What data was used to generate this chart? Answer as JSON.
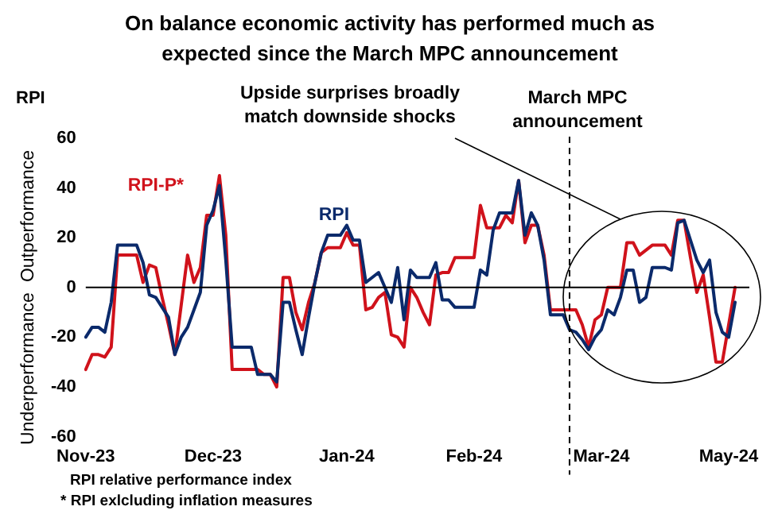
{
  "chart_data": {
    "type": "line",
    "title": "On balance economic activity has performed much as expected since the March MPC announcement",
    "ylabel": "RPI",
    "annotations": [
      "Outperformance",
      "Underperformance",
      "Upside surprises broadly match downside shocks",
      "March MPC announcement",
      "RPI relative performance index",
      "* RPI exlcluding inflation measures"
    ],
    "categories": [
      "Nov-23",
      null,
      null,
      null,
      null,
      null,
      null,
      null,
      null,
      null,
      null,
      null,
      null,
      null,
      null,
      null,
      null,
      null,
      null,
      null,
      "Dec-23",
      null,
      null,
      null,
      null,
      null,
      null,
      null,
      null,
      null,
      null,
      null,
      null,
      null,
      null,
      null,
      null,
      null,
      null,
      null,
      null,
      "Jan-24",
      null,
      null,
      null,
      null,
      null,
      null,
      null,
      null,
      null,
      null,
      null,
      null,
      null,
      null,
      null,
      null,
      null,
      null,
      null,
      "Feb-24",
      null,
      null,
      null,
      null,
      null,
      null,
      null,
      null,
      null,
      null,
      null,
      null,
      null,
      null,
      null,
      null,
      null,
      null,
      null,
      "Mar-24",
      null,
      null,
      null,
      null,
      null,
      null,
      null,
      null,
      null,
      null,
      null,
      null,
      null,
      null,
      null,
      null,
      null,
      null,
      null,
      "May-24",
      null
    ],
    "ylim": [
      -60,
      60
    ],
    "yticks": [
      -60,
      -40,
      -20,
      0,
      20,
      40,
      60
    ],
    "grid": false,
    "legend": false,
    "marker": "none",
    "line_style": "solid",
    "ref_lines": [
      {
        "axis": "y",
        "value": 0,
        "color": "#000000"
      }
    ],
    "series": [
      {
        "name": "RPI",
        "color": "#0b2a6b",
        "values": [
          -20,
          -16,
          -16,
          -18,
          -6,
          17,
          17,
          17,
          17,
          10,
          -3,
          -4,
          -8,
          -12,
          -27,
          -20,
          -16,
          -9,
          -2,
          25,
          31,
          41,
          11,
          -24,
          -24,
          -24,
          -24,
          -35,
          -35,
          -35,
          -38,
          -6,
          -6,
          -17,
          -27,
          -12,
          2,
          14,
          21,
          21,
          21,
          25,
          19,
          19,
          2,
          4,
          6,
          0,
          -6,
          8,
          -13,
          7,
          4,
          4,
          4,
          10,
          -5,
          -5,
          -8,
          -8,
          -8,
          -8,
          7,
          5,
          23,
          30,
          30,
          30,
          43,
          21,
          30,
          25,
          11,
          -11,
          -11,
          -11,
          -17,
          -18,
          -21,
          -25,
          -20,
          -17,
          -9,
          -11,
          -4,
          7,
          7,
          -6,
          -4,
          8,
          8,
          8,
          7,
          26,
          27,
          19,
          11,
          6,
          11,
          -10,
          -18,
          -20,
          -6
        ]
      },
      {
        "name": "RPI-P*",
        "color": "#d0121b",
        "values": [
          -33,
          -27,
          -27,
          -28,
          -24,
          13,
          13,
          13,
          13,
          2,
          9,
          8,
          -4,
          -15,
          -27,
          -7,
          13,
          2,
          8,
          29,
          29,
          45,
          21,
          -33,
          -33,
          -33,
          -33,
          -33,
          -35,
          -35,
          -40,
          4,
          4,
          -10,
          -17,
          -6,
          2,
          14,
          16,
          16,
          16,
          22,
          17,
          17,
          -9,
          -8,
          -4,
          -2,
          -19,
          -20,
          -24,
          0,
          -4,
          -10,
          -15,
          5,
          6,
          6,
          12,
          12,
          12,
          12,
          33,
          24,
          24,
          24,
          29,
          26,
          43,
          18,
          25,
          25,
          13,
          -9,
          -9,
          -9,
          -9,
          -9,
          -15,
          -24,
          -13,
          -11,
          0,
          0,
          0,
          18,
          18,
          13,
          15,
          17,
          17,
          17,
          13,
          27,
          27,
          12,
          -2,
          5,
          -12,
          -30,
          -30,
          -15,
          0
        ]
      }
    ]
  }
}
